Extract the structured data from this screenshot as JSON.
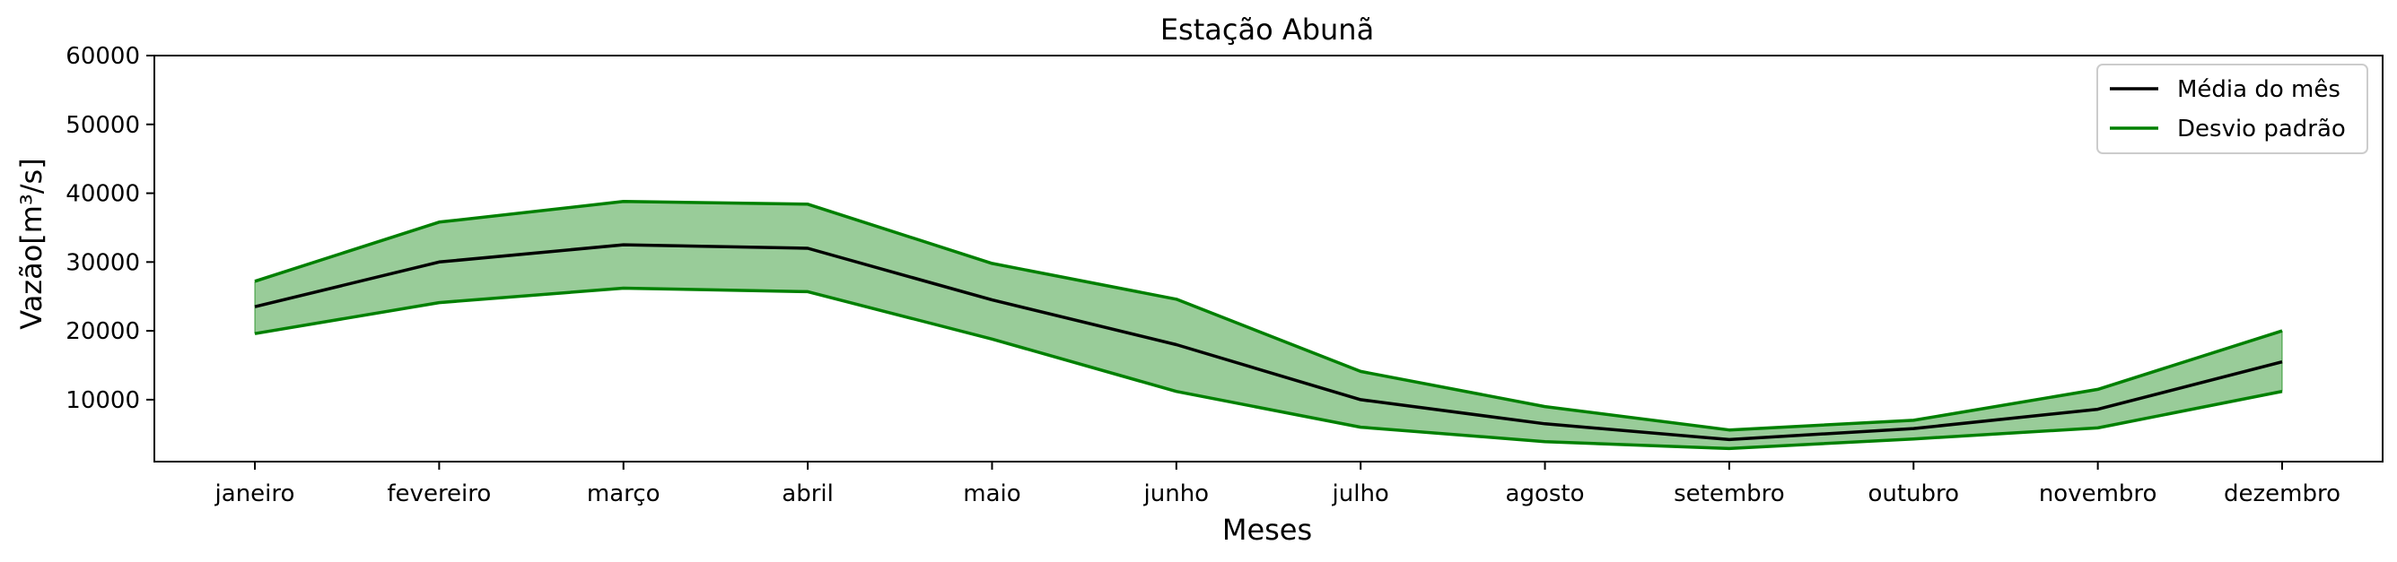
{
  "chart_data": {
    "type": "line",
    "title": "Estação Abunã",
    "xlabel": "Meses",
    "ylabel": "Vazão[m³/s]",
    "categories": [
      "janeiro",
      "fevereiro",
      "março",
      "abril",
      "maio",
      "junho",
      "julho",
      "agosto",
      "setembro",
      "outubro",
      "novembro",
      "dezembro"
    ],
    "ylim": [
      1000,
      60000
    ],
    "yticks": [
      10000,
      20000,
      30000,
      40000,
      50000,
      60000
    ],
    "grid": false,
    "legend_position": "top-right",
    "series": [
      {
        "name": "Média do mês",
        "color": "#000000",
        "values": [
          23500,
          30000,
          32500,
          32000,
          24500,
          18000,
          10000,
          6500,
          4200,
          5800,
          8600,
          15500
        ]
      },
      {
        "name": "Desvio padrão",
        "color": "#008000",
        "fill_color": "#99cc99",
        "upper": [
          27200,
          35800,
          38800,
          38400,
          29800,
          24600,
          14100,
          9000,
          5600,
          7000,
          11500,
          20000
        ],
        "lower": [
          19600,
          24100,
          26200,
          25700,
          18800,
          11200,
          6000,
          3900,
          2900,
          4300,
          5900,
          11200
        ]
      }
    ]
  }
}
